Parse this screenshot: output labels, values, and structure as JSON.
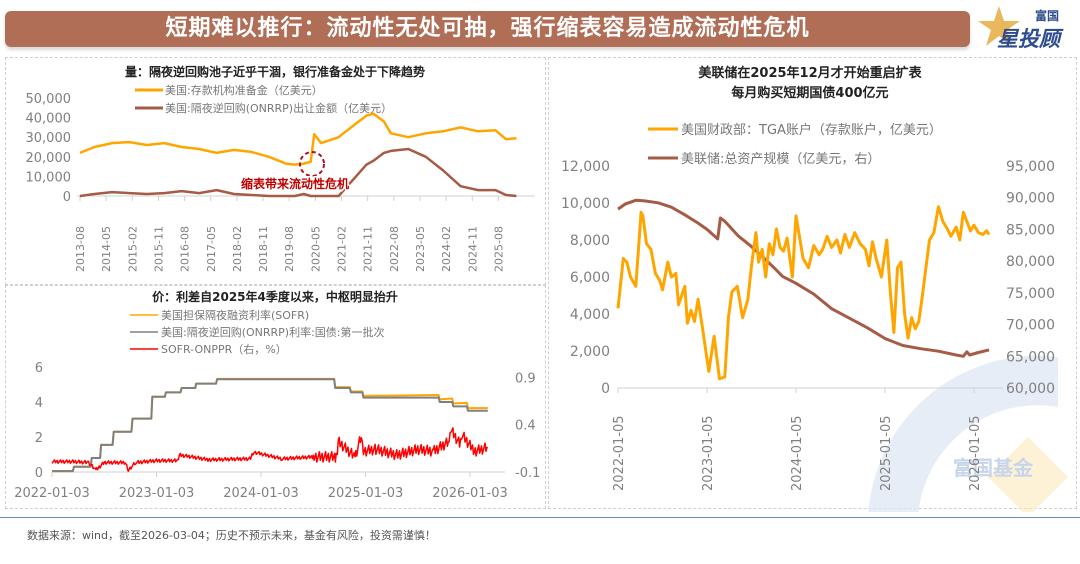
{
  "header": {
    "title": "短期难以推行：流动性无处可抽，强行缩表容易造成流动性危机",
    "logo_text_small": "富国",
    "logo_text_large": "星投顾"
  },
  "watermark": "富国基金",
  "footer": "数据来源：wind，截至2026-03-04；历史不预示未来，基金有风险，投资需谨慎！",
  "colors": {
    "banner": "#b16e57",
    "orange": "#ffa500",
    "brown": "#a55b45",
    "gray": "#808080",
    "red": "#ff0000",
    "annotation": "#c00000"
  },
  "chart_data": [
    {
      "type": "line",
      "title": "量：隔夜逆回购池子近乎干涸，银行准备金处于下降趋势",
      "annotation": "缩表带来流动性危机",
      "ylim": [
        0,
        50000
      ],
      "yticks": [
        "50,000",
        "40,000",
        "30,000",
        "20,000",
        "10,000",
        "0"
      ],
      "ytick_values": [
        50000,
        40000,
        30000,
        20000,
        10000,
        0
      ],
      "xticks": [
        "2013-08",
        "2014-05",
        "2015-02",
        "2015-11",
        "2016-08",
        "2017-05",
        "2018-02",
        "2018-11",
        "2019-08",
        "2020-05",
        "2021-02",
        "2021-11",
        "2022-08",
        "2023-05",
        "2024-02",
        "2024-11",
        "2025-08"
      ],
      "x": [
        2013.58,
        2014.0,
        2014.5,
        2015.0,
        2015.5,
        2016.0,
        2016.5,
        2017.0,
        2017.5,
        2018.0,
        2018.5,
        2019.0,
        2019.5,
        2019.75,
        2020.0,
        2020.2,
        2020.3,
        2020.5,
        2021.0,
        2021.5,
        2021.8,
        2022.0,
        2022.3,
        2022.5,
        2023.0,
        2023.5,
        2024.0,
        2024.5,
        2025.0,
        2025.5,
        2025.8,
        2026.1
      ],
      "series": [
        {
          "name": "美国:存款机构准备金（亿美元）",
          "values": [
            22000,
            25000,
            27000,
            27500,
            26000,
            27000,
            25000,
            24000,
            22000,
            23500,
            22500,
            20000,
            16500,
            16000,
            16500,
            17500,
            31500,
            27000,
            30000,
            37000,
            41000,
            42000,
            38000,
            32000,
            30000,
            32000,
            33000,
            35000,
            33000,
            33500,
            29000,
            29500
          ]
        },
        {
          "name": "美国:隔夜逆回购(ONRRP)出让金额（亿美元）",
          "values": [
            0,
            1000,
            2000,
            1500,
            1000,
            1500,
            2500,
            1500,
            3000,
            1000,
            500,
            0,
            0,
            0,
            1000,
            0,
            0,
            0,
            0,
            10000,
            16000,
            18000,
            22000,
            23000,
            24000,
            20000,
            13000,
            5000,
            3000,
            3000,
            500,
            0
          ]
        }
      ]
    },
    {
      "type": "line",
      "title": "价：利差自2025年4季度以来，中枢明显抬升",
      "ylim_left": [
        0,
        6
      ],
      "ylim_right": [
        -0.1,
        0.9
      ],
      "yticks_left": [
        "6",
        "4",
        "2",
        "0"
      ],
      "ytick_values_left": [
        6,
        4,
        2,
        0
      ],
      "yticks_right": [
        "0.9",
        "0.4",
        "-0.1"
      ],
      "ytick_values_right": [
        0.9,
        0.4,
        -0.1
      ],
      "xticks": [
        "2022-01-03",
        "2023-01-03",
        "2024-01-03",
        "2025-01-03",
        "2026-01-03"
      ],
      "series": [
        {
          "name": "美国担保隔夜融资利率(SOFR)",
          "axis": "left",
          "x": [
            2022.0,
            2022.2,
            2022.21,
            2022.37,
            2022.38,
            2022.46,
            2022.47,
            2022.58,
            2022.59,
            2022.76,
            2022.77,
            2022.95,
            2022.96,
            2023.08,
            2023.09,
            2023.23,
            2023.24,
            2023.37,
            2023.38,
            2023.57,
            2023.58,
            2024.7,
            2024.71,
            2024.85,
            2024.86,
            2024.97,
            2024.98,
            2025.7,
            2025.71,
            2025.83,
            2025.84,
            2025.97,
            2025.98,
            2026.17
          ],
          "values": [
            0.05,
            0.05,
            0.3,
            0.3,
            0.8,
            0.8,
            1.55,
            1.55,
            2.3,
            2.3,
            3.05,
            3.05,
            4.3,
            4.3,
            4.55,
            4.55,
            4.8,
            4.8,
            5.05,
            5.05,
            5.32,
            5.32,
            4.85,
            4.85,
            4.6,
            4.6,
            4.35,
            4.4,
            4.15,
            4.2,
            3.92,
            3.95,
            3.65,
            3.65
          ]
        },
        {
          "name": "美国:隔夜逆回购(ONRRP)利率:国债:第一批次",
          "axis": "left",
          "x": [
            2022.0,
            2022.2,
            2022.21,
            2022.37,
            2022.38,
            2022.46,
            2022.47,
            2022.58,
            2022.59,
            2022.76,
            2022.77,
            2022.95,
            2022.96,
            2023.08,
            2023.09,
            2023.23,
            2023.24,
            2023.37,
            2023.38,
            2023.57,
            2023.58,
            2024.7,
            2024.71,
            2024.85,
            2024.86,
            2024.97,
            2024.98,
            2025.7,
            2025.71,
            2025.83,
            2025.84,
            2025.97,
            2025.98,
            2026.17
          ],
          "values": [
            0.05,
            0.05,
            0.3,
            0.3,
            0.8,
            0.8,
            1.55,
            1.55,
            2.3,
            2.3,
            3.05,
            3.05,
            4.3,
            4.3,
            4.55,
            4.55,
            4.8,
            4.8,
            5.05,
            5.05,
            5.3,
            5.3,
            4.8,
            4.8,
            4.55,
            4.55,
            4.25,
            4.25,
            4.0,
            4.0,
            3.75,
            3.75,
            3.5,
            3.5
          ]
        },
        {
          "name": "SOFR-ONPPR（右，%）",
          "axis": "right",
          "x": [
            2022.0,
            2022.2,
            2022.35,
            2022.42,
            2022.5,
            2022.7,
            2022.73,
            2022.8,
            2023.0,
            2023.2,
            2023.22,
            2023.5,
            2023.9,
            2023.93,
            2024.2,
            2024.5,
            2024.72,
            2024.74,
            2024.9,
            2024.96,
            2024.98,
            2025.1,
            2025.3,
            2025.5,
            2025.65,
            2025.8,
            2025.82,
            2025.9,
            2025.92,
            2026.0,
            2026.05,
            2026.17
          ],
          "values": [
            0.01,
            0.01,
            0.0,
            -0.08,
            0.0,
            0.0,
            -0.08,
            0.0,
            0.02,
            0.02,
            0.08,
            0.03,
            0.04,
            0.11,
            0.04,
            0.06,
            0.06,
            0.22,
            0.06,
            0.28,
            0.12,
            0.14,
            0.08,
            0.14,
            0.12,
            0.22,
            0.34,
            0.2,
            0.3,
            0.18,
            0.12,
            0.16
          ]
        }
      ]
    },
    {
      "type": "line",
      "title_line1": "美联储在2025年12月才开始重启扩表",
      "title_line2": "每月购买短期国债400亿元",
      "ylim_left": [
        0,
        12000
      ],
      "ylim_right": [
        60000,
        95000
      ],
      "yticks_left": [
        "12,000",
        "10,000",
        "8,000",
        "6,000",
        "4,000",
        "2,000",
        "0"
      ],
      "ytick_values_left": [
        12000,
        10000,
        8000,
        6000,
        4000,
        2000,
        0
      ],
      "yticks_right": [
        "95,000",
        "90,000",
        "85,000",
        "80,000",
        "75,000",
        "70,000",
        "65,000",
        "60,000"
      ],
      "ytick_values_right": [
        95000,
        90000,
        85000,
        80000,
        75000,
        70000,
        65000,
        60000
      ],
      "xticks": [
        "2022-01-05",
        "2023-01-05",
        "2024-01-05",
        "2025-01-05",
        "2026-01-05"
      ],
      "series": [
        {
          "name": "美国财政部：TGA账户（存款账户，亿美元）",
          "axis": "left",
          "x": [
            2022.0,
            2022.06,
            2022.1,
            2022.14,
            2022.2,
            2022.26,
            2022.28,
            2022.32,
            2022.37,
            2022.42,
            2022.47,
            2022.5,
            2022.56,
            2022.6,
            2022.65,
            2022.68,
            2022.75,
            2022.78,
            2022.82,
            2022.86,
            2022.9,
            2022.95,
            2023.02,
            2023.08,
            2023.14,
            2023.2,
            2023.24,
            2023.28,
            2023.34,
            2023.4,
            2023.46,
            2023.5,
            2023.55,
            2023.58,
            2023.62,
            2023.66,
            2023.7,
            2023.74,
            2023.78,
            2023.82,
            2023.86,
            2023.9,
            2023.96,
            2024.0,
            2024.08,
            2024.14,
            2024.2,
            2024.26,
            2024.3,
            2024.35,
            2024.4,
            2024.46,
            2024.5,
            2024.55,
            2024.6,
            2024.66,
            2024.72,
            2024.78,
            2024.82,
            2024.86,
            2024.9,
            2024.96,
            2025.02,
            2025.06,
            2025.1,
            2025.14,
            2025.18,
            2025.22,
            2025.26,
            2025.3,
            2025.34,
            2025.38,
            2025.42,
            2025.46,
            2025.5,
            2025.55,
            2025.6,
            2025.65,
            2025.7,
            2025.74,
            2025.8,
            2025.84,
            2025.88,
            2025.92,
            2025.96,
            2026.0,
            2026.05,
            2026.1,
            2026.14,
            2026.17
          ],
          "values": [
            4300,
            7000,
            6800,
            6000,
            5500,
            9500,
            9300,
            7800,
            7500,
            6200,
            5800,
            5300,
            6800,
            6000,
            6200,
            4500,
            5500,
            3500,
            4200,
            3600,
            4800,
            3200,
            900,
            2800,
            500,
            600,
            3800,
            5200,
            5500,
            3800,
            4800,
            6600,
            8400,
            6800,
            7500,
            6000,
            7800,
            7200,
            8600,
            7600,
            7400,
            8100,
            6000,
            9300,
            7000,
            6500,
            7700,
            7200,
            7500,
            8200,
            7600,
            8000,
            7300,
            8300,
            7600,
            8400,
            7800,
            7500,
            6600,
            7900,
            7000,
            6000,
            8000,
            5200,
            3000,
            6500,
            6800,
            4000,
            2700,
            3800,
            3200,
            3600,
            5000,
            6500,
            8000,
            8400,
            9800,
            9000,
            8600,
            8200,
            8700,
            8000,
            9500,
            9000,
            8500,
            8800,
            8400,
            8300,
            8500,
            8300
          ]
        },
        {
          "name": "美联储:总资产规模（亿美元，右）",
          "axis": "right",
          "x": [
            2022.0,
            2022.08,
            2022.2,
            2022.3,
            2022.45,
            2022.6,
            2022.75,
            2022.9,
            2023.0,
            2023.12,
            2023.15,
            2023.2,
            2023.35,
            2023.5,
            2023.6,
            2023.75,
            2023.85,
            2024.0,
            2024.2,
            2024.4,
            2024.6,
            2024.8,
            2025.0,
            2025.2,
            2025.4,
            2025.6,
            2025.8,
            2025.88,
            2025.92,
            2025.95,
            2026.05,
            2026.17
          ],
          "values": [
            88200,
            89000,
            89600,
            89500,
            89200,
            88500,
            87300,
            86000,
            85000,
            83500,
            86800,
            86300,
            84000,
            82300,
            81000,
            79000,
            77600,
            76500,
            74800,
            72500,
            71000,
            69500,
            67800,
            66700,
            66200,
            65800,
            65200,
            65000,
            65700,
            65200,
            65600,
            66000
          ]
        }
      ]
    }
  ]
}
